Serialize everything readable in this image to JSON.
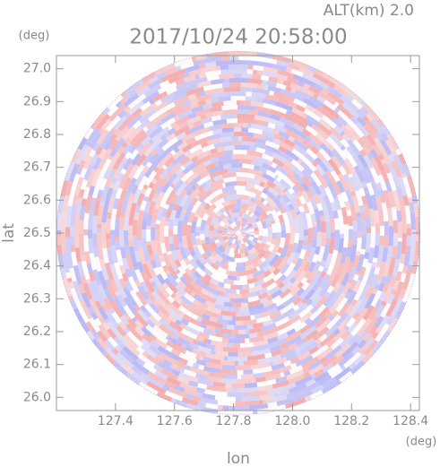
{
  "chart_data": {
    "type": "ppi",
    "subtitle": "ALT(km) 2.0",
    "title": "2017/10/24 20:58:00",
    "x_label": "lon",
    "y_label": "lat",
    "x_unit": "(deg)",
    "y_unit": "(deg)",
    "xlim": [
      127.2,
      128.43
    ],
    "ylim": [
      25.96,
      27.04
    ],
    "xticks": [
      127.4,
      127.6,
      127.8,
      {
        "value": 128,
        "label": "128.0"
      },
      128.2,
      128.4
    ],
    "yticks": [
      {
        "value": 26,
        "label": "26.0"
      },
      26.1,
      26.2,
      26.3,
      26.4,
      26.5,
      26.6,
      26.7,
      26.8,
      26.9,
      {
        "value": 27,
        "label": "27.0"
      }
    ]
  }
}
